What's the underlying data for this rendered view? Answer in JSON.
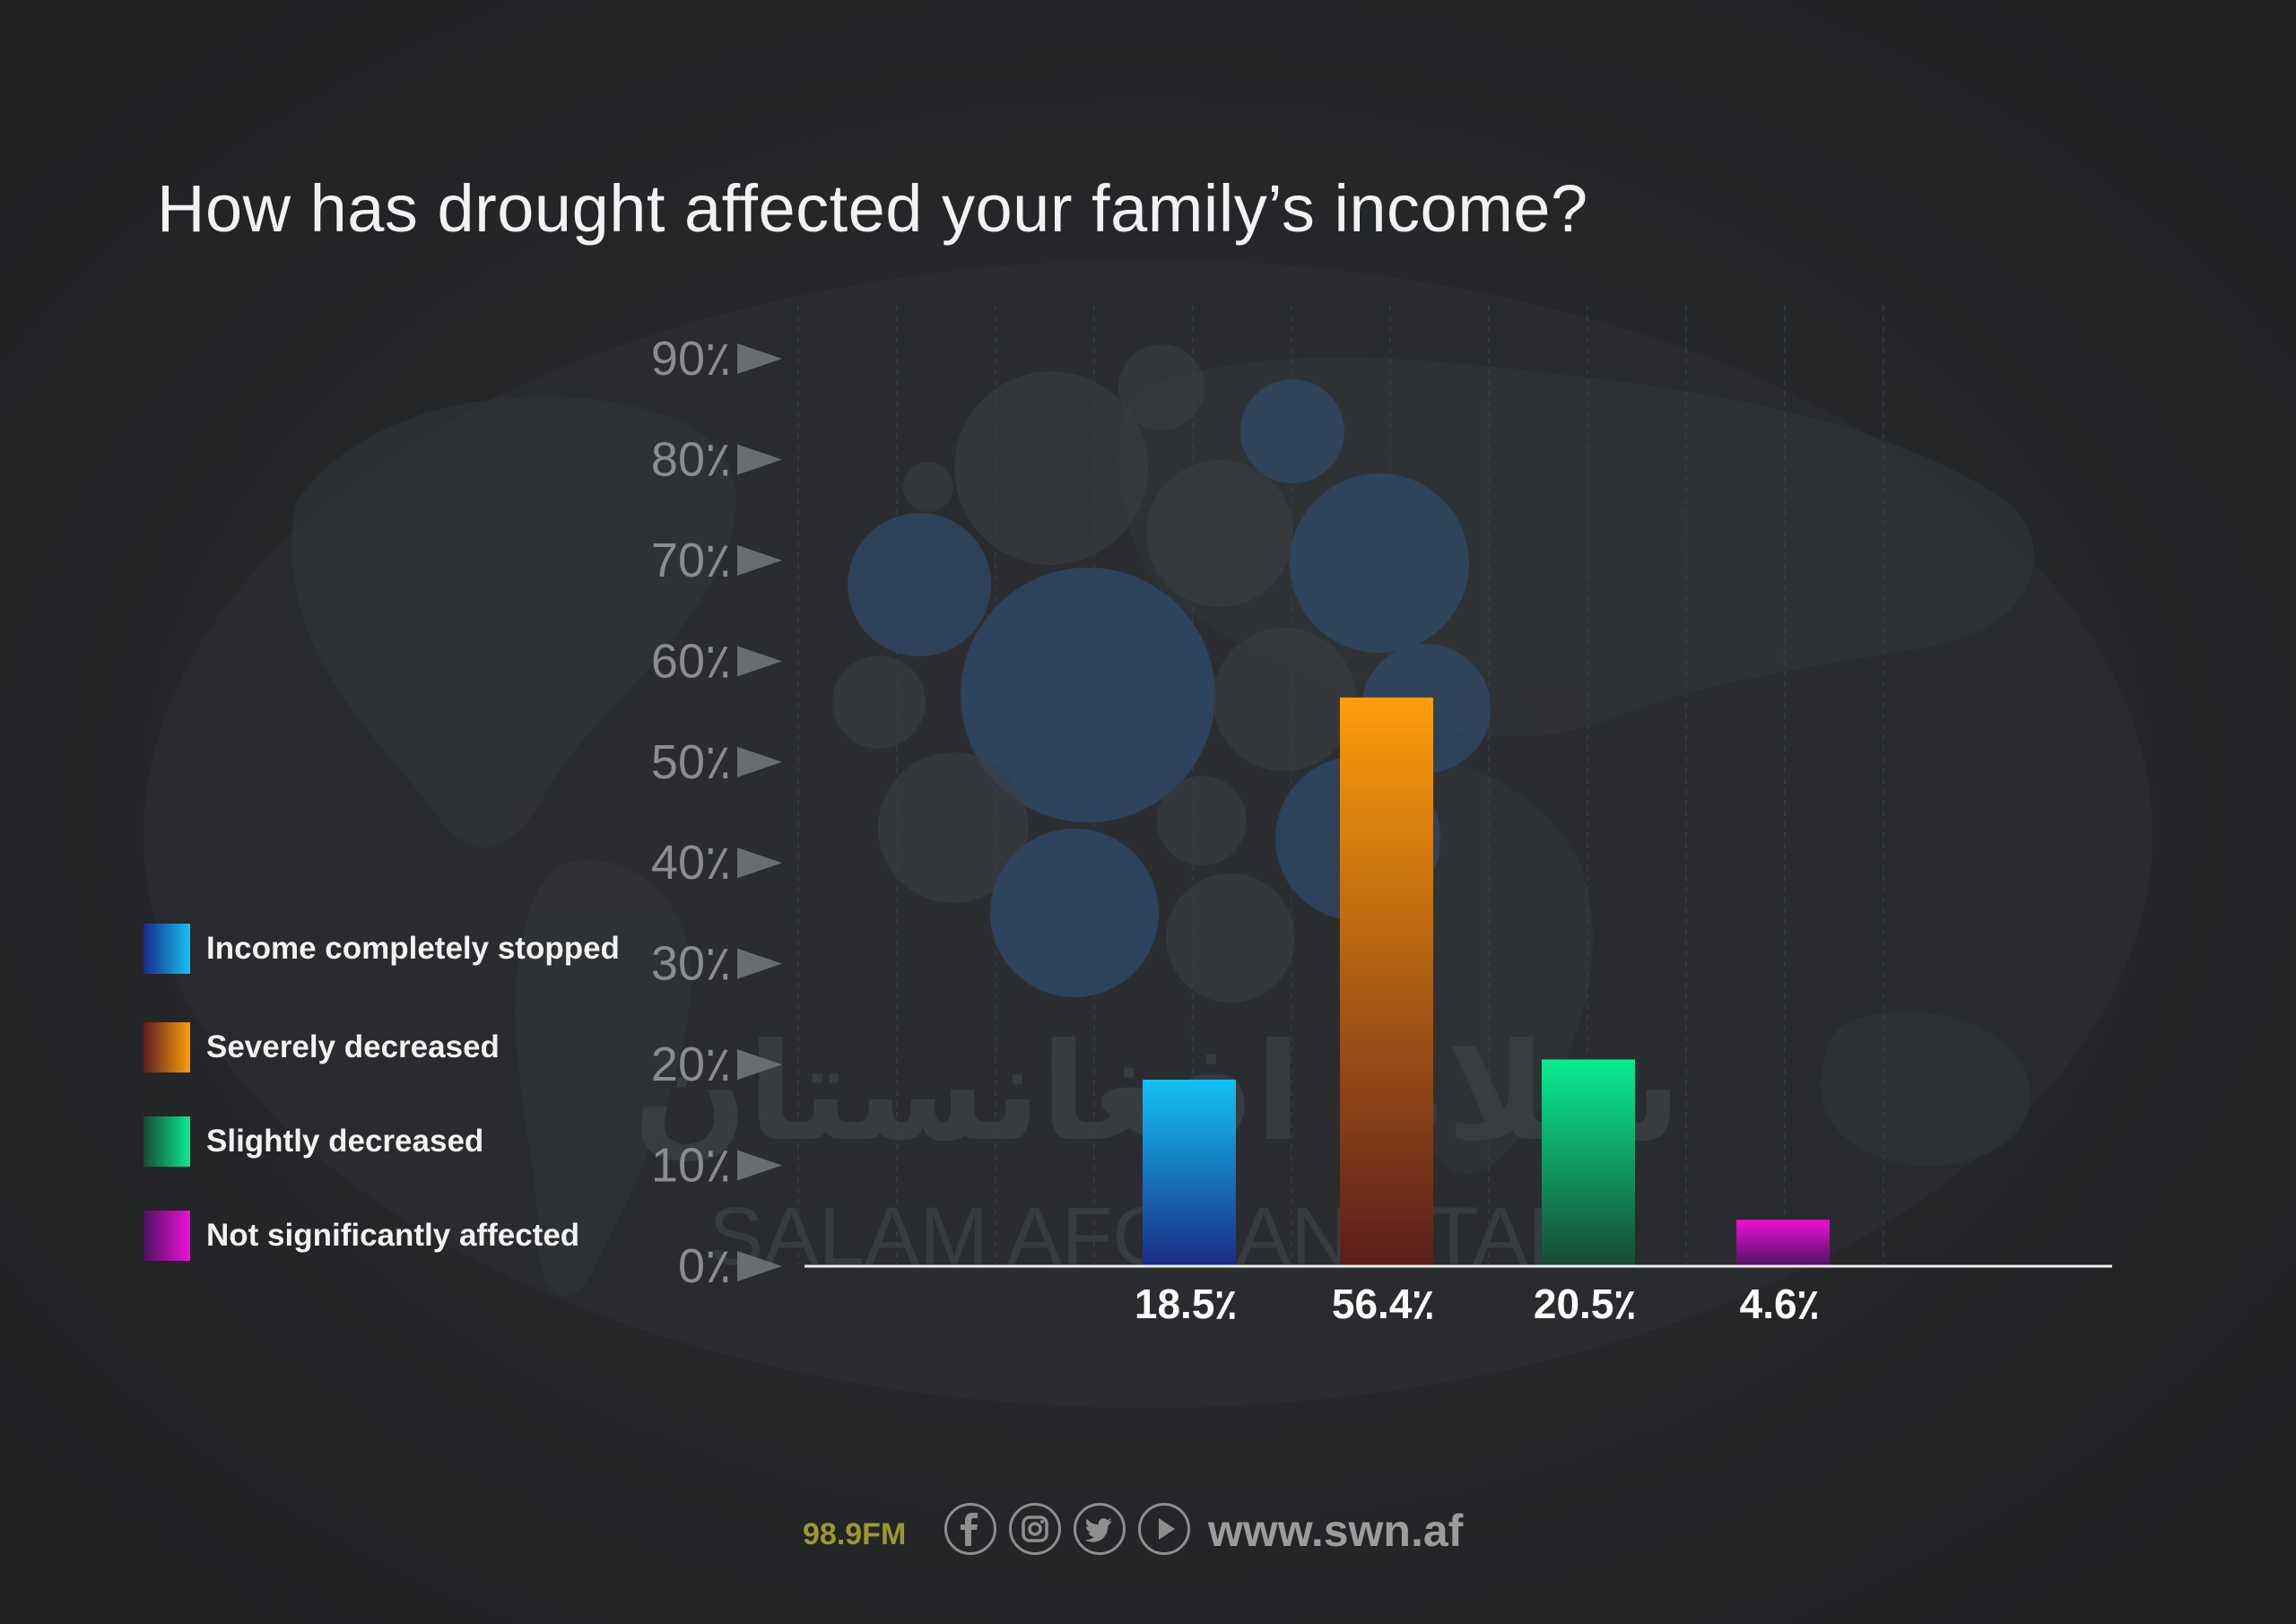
{
  "chart_data": {
    "type": "bar",
    "title": "How has drought affected your family’s income?",
    "categories": [
      "Income completely stopped",
      "Severely decreased",
      "Slightly decreased",
      "Not significantly affected"
    ],
    "values": [
      18.5,
      56.4,
      20.5,
      4.6
    ],
    "value_labels": [
      "18.5٪",
      "56.4٪",
      "20.5٪",
      "4.6٪"
    ],
    "y_ticks": [
      {
        "value": 0,
        "label": "0٪"
      },
      {
        "value": 10,
        "label": "10٪"
      },
      {
        "value": 20,
        "label": "20٪"
      },
      {
        "value": 30,
        "label": "30٪"
      },
      {
        "value": 40,
        "label": "40٪"
      },
      {
        "value": 50,
        "label": "50٪"
      },
      {
        "value": 60,
        "label": "60٪"
      },
      {
        "value": 70,
        "label": "70٪"
      },
      {
        "value": 80,
        "label": "80٪"
      },
      {
        "value": 90,
        "label": "90٪"
      }
    ],
    "ylim": [
      0,
      90
    ],
    "xlabel": "",
    "ylabel": "",
    "grid": true,
    "legend_position": "left",
    "colors": [
      {
        "top": "#13c2f4",
        "bottom": "#1a2a86"
      },
      {
        "top": "#ff9d0a",
        "bottom": "#5a1d1c"
      },
      {
        "top": "#09ec92",
        "bottom": "#164a35"
      },
      {
        "top": "#ee10d8",
        "bottom": "#4b1260"
      }
    ]
  },
  "legend": [
    {
      "label": "Income completely stopped"
    },
    {
      "label": "Severely decreased"
    },
    {
      "label": "Slightly decreased"
    },
    {
      "label": "Not significantly affected"
    }
  ],
  "watermark": {
    "arabic": "سلام افغانستان",
    "latin": "SALAM AFGHANISTAN"
  },
  "footer": {
    "frequency": "98.9FM",
    "website": "www.swn.af",
    "icons": [
      "facebook-icon",
      "instagram-icon",
      "twitter-icon",
      "youtube-play-icon"
    ]
  }
}
